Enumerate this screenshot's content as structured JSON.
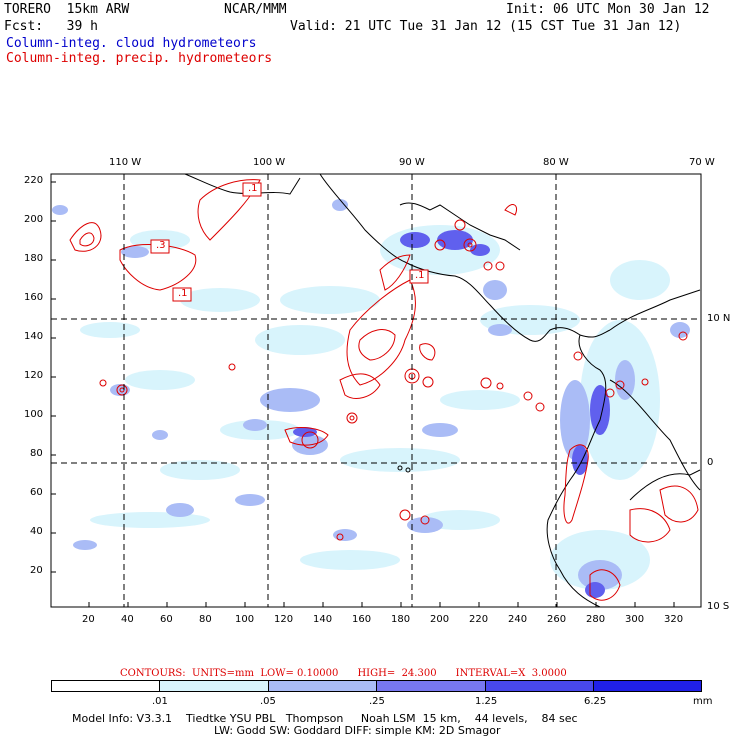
{
  "header": {
    "model": "TORERO  15km ARW",
    "center": "NCAR/MMM",
    "init": "Init: 06 UTC Mon 30 Jan 12",
    "fcst": "Fcst:   39 h",
    "valid": "Valid: 21 UTC Tue 31 Jan 12 (15 CST Tue 31 Jan 12)",
    "field1": "Column-integ. cloud hydrometeors",
    "field2": "Column-integ. precip. hydrometeors"
  },
  "map": {
    "top_lon_labels": [
      "110 W",
      "100 W",
      "90 W",
      "80 W",
      "70 W"
    ],
    "right_lat_labels": [
      "10 N",
      "0",
      "10 S"
    ],
    "y_ticks": [
      "220",
      "200",
      "180",
      "160",
      "140",
      "120",
      "100",
      "80",
      "60",
      "40",
      "20"
    ],
    "x_ticks": [
      "20",
      "40",
      "60",
      "80",
      "100",
      "120",
      "140",
      "160",
      "180",
      "200",
      "220",
      "240",
      "260",
      "280",
      "300",
      "320"
    ],
    "contour_labels": [
      ".1",
      ".3",
      ".1",
      ".1"
    ]
  },
  "contour_info": "CONTOURS:  UNITS=mm  LOW= 0.10000      HIGH=  24.300      INTERVAL=X  3.0000",
  "colorbar": {
    "labels": [
      ".01",
      ".05",
      ".25",
      "1.25",
      "6.25"
    ],
    "units": "mm",
    "colors": [
      "#ffffff",
      "#d8f4fc",
      "#aabcf6",
      "#7878f0",
      "#4848ec",
      "#2020e8"
    ]
  },
  "footer": {
    "line1": "Model Info: V3.3.1    Tiedtke YSU PBL   Thompson     Noah LSM  15 km,    44 levels,    84 sec",
    "line2": "LW: Godd SW: Goddard DIFF: simple KM: 2D Smagor"
  }
}
